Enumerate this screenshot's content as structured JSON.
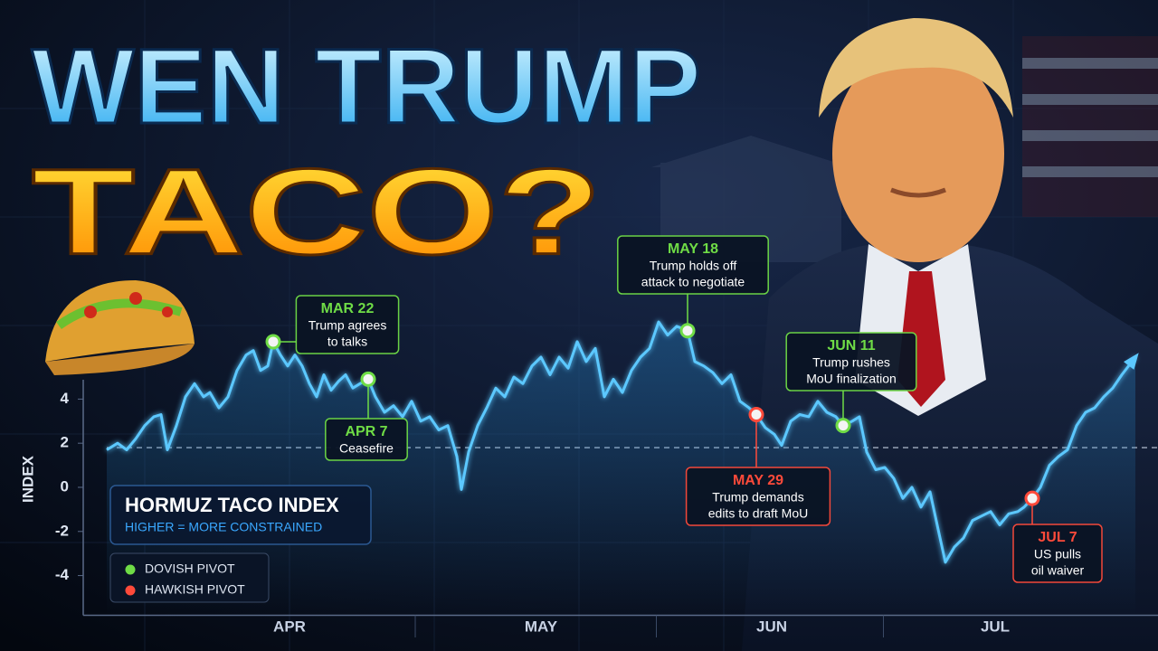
{
  "header": {
    "title_line1": "WEN TRUMP",
    "title_line2": "TACO?"
  },
  "chart_data": {
    "type": "line",
    "title": "HORMUZ TACO INDEX",
    "subtitle": "HIGHER = MORE CONSTRAINED",
    "y_label": "INDEX",
    "color": "#5cc8ff",
    "x": [
      0,
      1.2,
      2.2,
      3.2,
      4.2,
      5.2,
      6.0,
      6.7,
      7.7,
      8.7,
      9.7,
      10.7,
      11.4,
      12.4,
      13.4,
      14.4,
      15.4,
      16.2,
      17.0,
      17.8,
      18.4,
      19.2,
      20.0,
      20.8,
      21.6,
      22.4,
      23.2,
      24.0,
      24.8,
      25.6,
      26.4,
      27.2,
      28.0,
      28.9,
      29.7,
      30.7,
      31.7,
      32.7,
      33.7,
      34.7,
      35.7,
      36.7,
      37.7,
      38.7,
      39.2,
      40.0,
      41.0,
      42.0,
      43.0,
      44.0,
      45.0,
      46.0,
      47.0,
      48.0,
      49.0,
      50.0,
      51.0,
      52.0,
      53.0,
      54.0,
      55.0,
      56.0,
      57.0,
      58.0,
      59.0,
      60.0,
      61.0,
      62.0,
      63.0,
      64.2,
      65.0,
      66.0,
      67.0,
      68.0,
      69.0,
      70.0,
      71.0,
      71.8,
      72.8,
      73.8,
      74.6,
      75.6,
      76.6,
      77.6,
      78.6,
      79.6,
      80.6,
      81.4,
      82.4,
      83.2,
      84.0,
      85.0,
      86.0,
      87.0,
      88.0,
      89.0,
      90.0,
      91.0,
      92.0,
      92.7,
      93.7,
      94.7,
      95.7,
      96.7,
      97.7,
      98.7,
      99.7,
      100.7,
      101.4,
      102.3,
      103.2,
      104.2,
      105.2,
      106.2,
      107.2,
      108.2,
      109.2,
      110.2,
      111.2,
      112.2,
      113.7
    ],
    "values": [
      1.7,
      2.0,
      1.7,
      2.2,
      2.8,
      3.2,
      3.3,
      1.7,
      2.8,
      4.1,
      4.7,
      4.1,
      4.3,
      3.6,
      4.1,
      5.3,
      6.0,
      6.2,
      5.3,
      5.5,
      6.6,
      6.0,
      5.5,
      6.0,
      5.5,
      4.7,
      4.1,
      5.1,
      4.4,
      4.8,
      5.1,
      4.5,
      4.7,
      4.9,
      4.1,
      3.4,
      3.7,
      3.2,
      3.9,
      3.0,
      3.2,
      2.6,
      2.8,
      1.4,
      -0.1,
      1.6,
      2.8,
      3.6,
      4.5,
      4.1,
      5.0,
      4.7,
      5.5,
      5.9,
      5.1,
      5.9,
      5.4,
      6.6,
      5.7,
      6.3,
      4.1,
      4.9,
      4.3,
      5.3,
      5.9,
      6.3,
      7.5,
      6.9,
      7.3,
      7.1,
      5.7,
      5.5,
      5.2,
      4.7,
      5.1,
      3.9,
      3.6,
      3.3,
      2.7,
      2.4,
      1.9,
      3.0,
      3.3,
      3.2,
      3.9,
      3.4,
      3.2,
      2.8,
      3.0,
      3.2,
      1.6,
      0.8,
      0.9,
      0.4,
      -0.5,
      0.0,
      -0.9,
      -0.2,
      -2.1,
      -3.4,
      -2.7,
      -2.3,
      -1.5,
      -1.3,
      -1.1,
      -1.7,
      -1.2,
      -1.1,
      -0.9,
      -0.5,
      0.0,
      1.0,
      1.4,
      1.7,
      2.8,
      3.4,
      3.6,
      4.1,
      4.5,
      5.1,
      5.9
    ],
    "xlim": [
      0,
      114
    ],
    "ylim": [
      -5.8,
      9.2
    ],
    "xticks": [
      {
        "value": 20.2,
        "label": "APR"
      },
      {
        "value": 48,
        "label": "MAY"
      },
      {
        "value": 73.5,
        "label": "JUN"
      },
      {
        "value": 98.2,
        "label": "JUL"
      }
    ],
    "yticks": [
      -4,
      -2,
      0,
      2,
      4
    ],
    "reference_line": 1.8,
    "legend": [
      {
        "label": "DOVISH PIVOT",
        "color": "#6fdc46"
      },
      {
        "label": "HAWKISH PIVOT",
        "color": "#ff4a3a"
      }
    ],
    "annotations": [
      {
        "x": 18.4,
        "y": 6.6,
        "label": "MAR 22",
        "text_lines": [
          "Trump agrees",
          "to talks"
        ],
        "color": "#6fdc46"
      },
      {
        "x": 28.9,
        "y": 4.9,
        "label": "APR 7",
        "text_lines": [
          "Ceasefire"
        ],
        "color": "#6fdc46"
      },
      {
        "x": 64.2,
        "y": 7.1,
        "label": "MAY 18",
        "text_lines": [
          "Trump holds off",
          "attack to negotiate"
        ],
        "color": "#6fdc46"
      },
      {
        "x": 71.8,
        "y": 3.3,
        "label": "MAY 29",
        "text_lines": [
          "Trump demands",
          "edits to draft MoU"
        ],
        "color": "#ff4a3a"
      },
      {
        "x": 81.4,
        "y": 2.8,
        "label": "JUN 11",
        "text_lines": [
          "Trump rushes",
          "MoU finalization"
        ],
        "color": "#6fdc46"
      },
      {
        "x": 102.3,
        "y": -0.5,
        "label": "JUL 7",
        "text_lines": [
          "US pulls",
          "oil waiver"
        ],
        "color": "#ff4a3a"
      }
    ]
  }
}
